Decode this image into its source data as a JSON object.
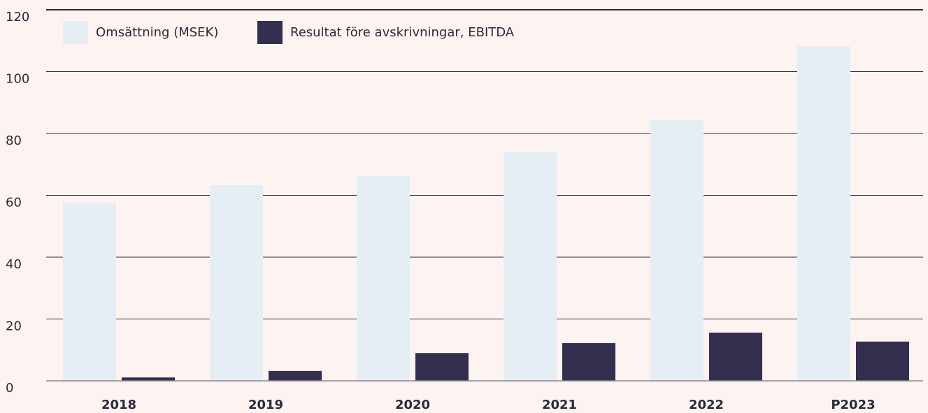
{
  "chart_data": {
    "type": "bar",
    "categories": [
      "2018",
      "2019",
      "2020",
      "2021",
      "2022",
      "P2023"
    ],
    "series": [
      {
        "name": "Omsättning (MSEK)",
        "color": "#e5eef5",
        "values": [
          57.6,
          63.3,
          66.2,
          73.9,
          84.3,
          108.2
        ]
      },
      {
        "name": "Resultat före avskrivningar, EBITDA",
        "color": "#352f4f",
        "values": [
          1.1,
          3.2,
          9.0,
          12.2,
          15.6,
          12.7
        ]
      }
    ],
    "ylim": [
      0,
      120
    ],
    "yticks": [
      0,
      20,
      40,
      60,
      80,
      100,
      120
    ],
    "grid": true,
    "legend": "top-left"
  }
}
